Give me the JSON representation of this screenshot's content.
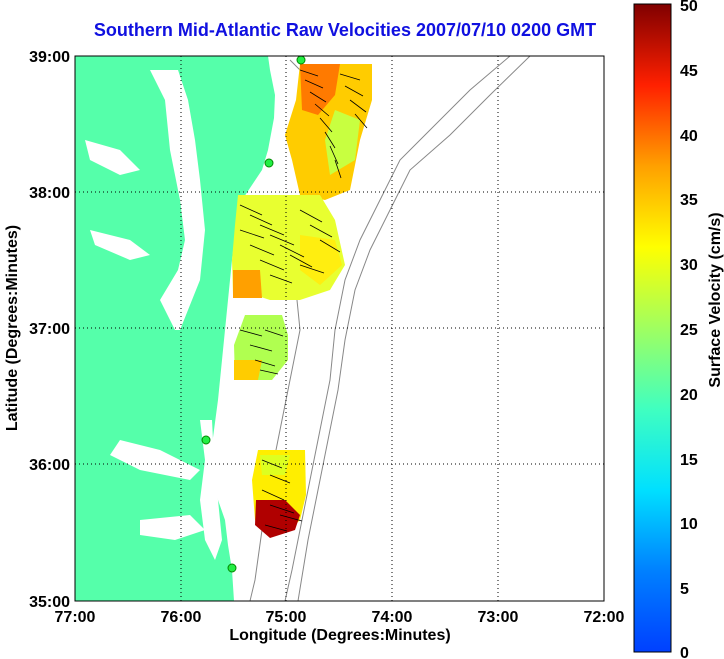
{
  "title": "Southern Mid-Atlantic Raw Velocities 2007/07/10 0200 GMT",
  "map": {
    "xlabel": "Longitude (Degrees:Minutes)",
    "ylabel": "Latitude (Degrees:Minutes)",
    "x_ticks": [
      "77:00",
      "76:00",
      "75:00",
      "74:00",
      "73:00",
      "72:00"
    ],
    "y_ticks": [
      "39:00",
      "38:00",
      "37:00",
      "36:00",
      "35:00"
    ],
    "lon_range": [
      -77,
      -72
    ],
    "lat_range": [
      35,
      39
    ],
    "grid": true,
    "land_color": "#55ffaa",
    "station_color": "#22ee44"
  },
  "colorbar": {
    "label": "Surface Velocity (cm/s)",
    "ticks": [
      "0",
      "5",
      "10",
      "15",
      "20",
      "25",
      "30",
      "35",
      "40",
      "45",
      "50"
    ],
    "range": [
      0,
      50
    ]
  }
}
